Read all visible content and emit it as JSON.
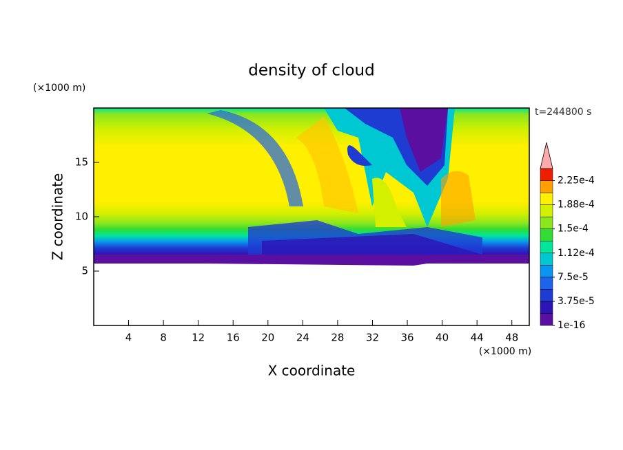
{
  "chart_data": {
    "type": "contour",
    "title": "density of cloud",
    "xlabel": "X coordinate",
    "ylabel": "Z coordinate",
    "xunit": "(×1000 m)",
    "yunit": "(×1000 m)",
    "annotation": "t=244800 s",
    "xlim": [
      0,
      50
    ],
    "ylim": [
      0,
      20
    ],
    "xticks": [
      4,
      8,
      12,
      16,
      20,
      24,
      28,
      32,
      36,
      40,
      44,
      48
    ],
    "yticks": [
      5,
      10,
      15
    ],
    "colorbar": {
      "levels": [
        1e-16,
        1.875e-05,
        3.75e-05,
        5.625e-05,
        7.5e-05,
        9.375e-05,
        0.0001125,
        0.00013125,
        0.00015,
        0.00016875,
        0.0001875,
        0.00020625,
        0.000225,
        0.00024375
      ],
      "colors": [
        "#5a0fa0",
        "#2d14b4",
        "#1e3cd2",
        "#1e64eb",
        "#0a96f0",
        "#00c8d2",
        "#00e69b",
        "#32dc32",
        "#8ce61e",
        "#d2f000",
        "#fff000",
        "#ffa000",
        "#f01e00"
      ],
      "extend_color": "#ffaaaa",
      "ticks": [
        1e-16,
        {
          "value": 3.75e-05,
          "label": "3.75e-5"
        },
        {
          "value": 7.5e-05,
          "label": "7.5e-5"
        },
        {
          "value": 0.0001125,
          "label": "1.12e-4"
        },
        {
          "value": 0.00015,
          "label": "1.5e-4"
        },
        {
          "value": 0.0001875,
          "label": "1.88e-4"
        },
        {
          "value": 0.000225,
          "label": "2.25e-4"
        }
      ]
    }
  }
}
